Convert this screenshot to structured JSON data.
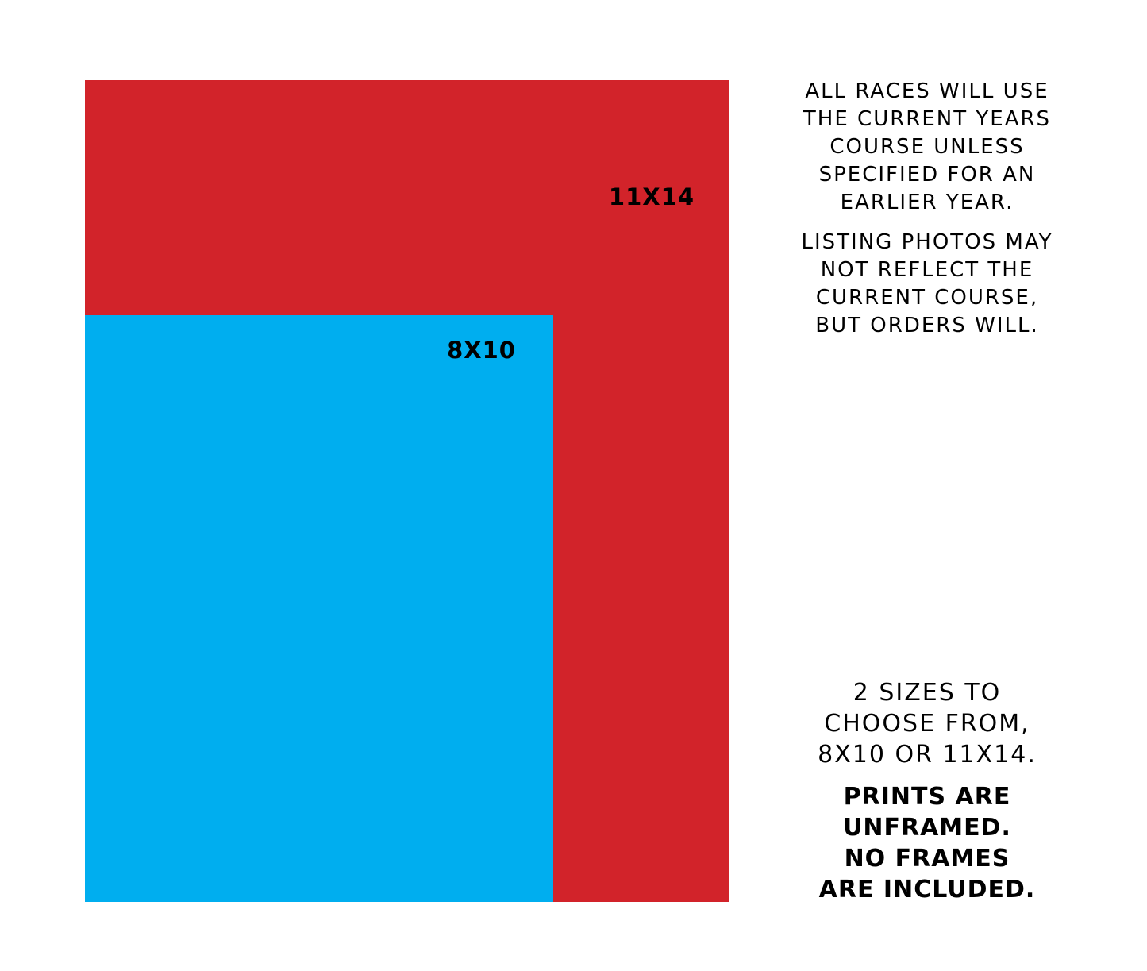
{
  "colors": {
    "large_print": "#D2232A",
    "small_print": "#00AEEF",
    "text": "#000000",
    "background": "#FFFFFF"
  },
  "sizes": [
    {
      "label": "11X14",
      "width_in": 11,
      "height_in": 14
    },
    {
      "label": "8X10",
      "width_in": 8,
      "height_in": 10
    }
  ],
  "notes": {
    "course": "ALL RACES WILL USE THE CURRENT YEARS COURSE UNLESS SPECIFIED FOR AN EARLIER YEAR.",
    "photos": "LISTING PHOTOS MAY NOT REFLECT THE CURRENT COURSE, BUT ORDERS WILL.",
    "sizes": "2 SIZES TO CHOOSE FROM, 8X10 OR 11X14.",
    "frames": "PRINTS ARE UNFRAMED. NO FRAMES ARE INCLUDED."
  }
}
